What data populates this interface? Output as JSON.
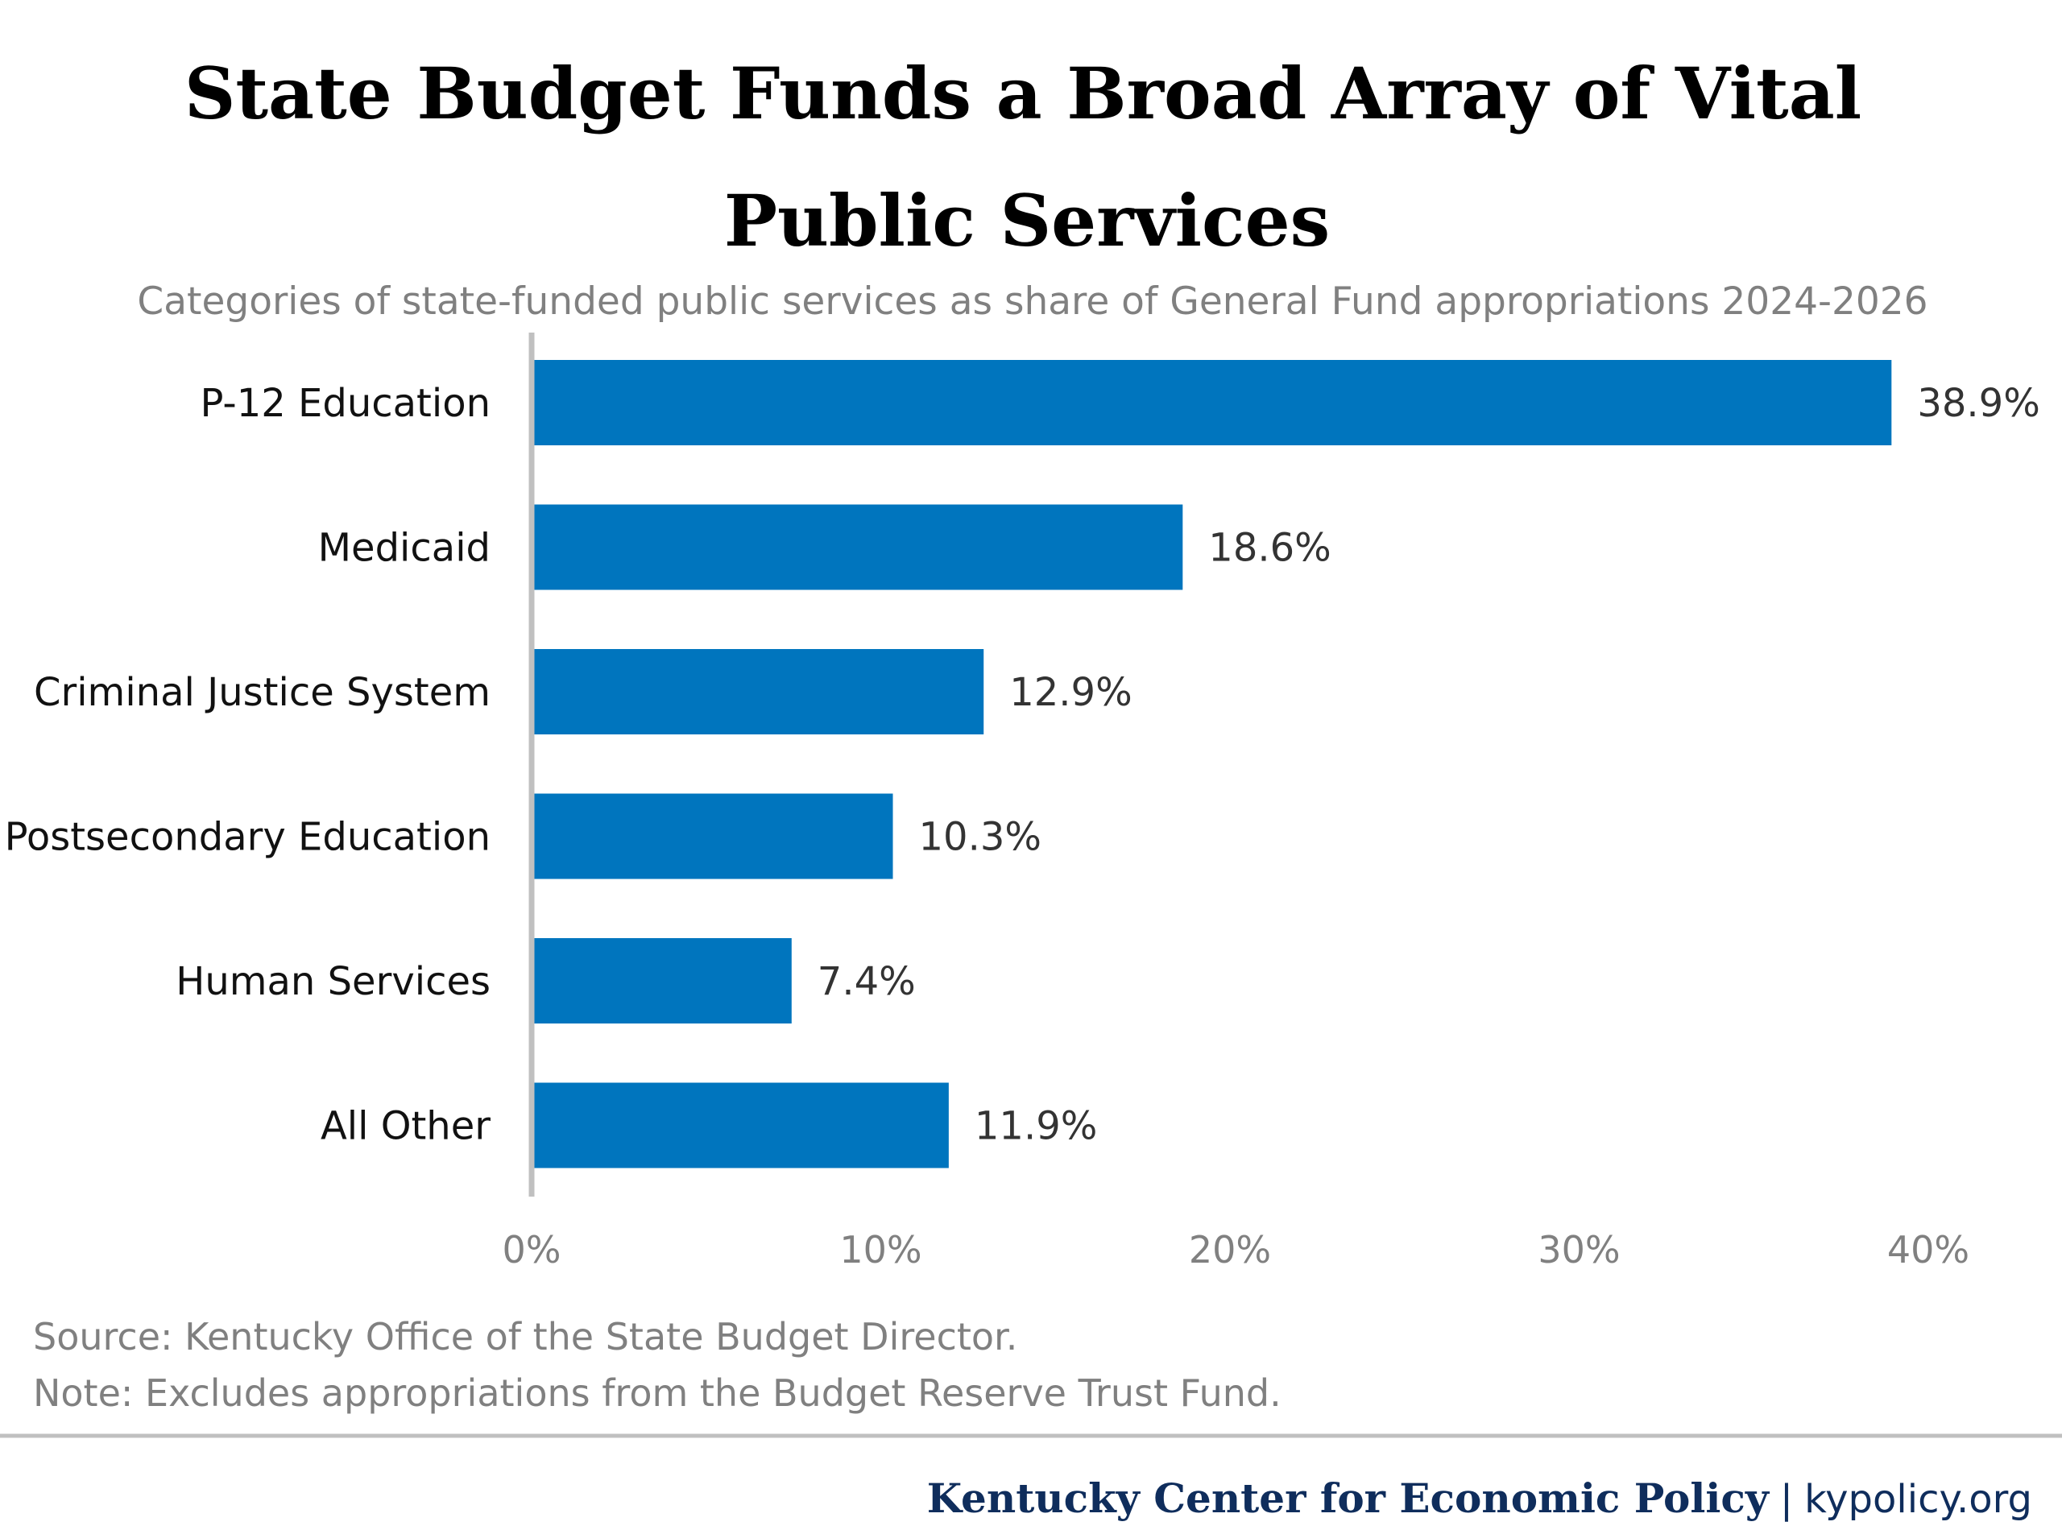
{
  "chart_data": {
    "type": "bar",
    "orientation": "horizontal",
    "title_lines": [
      "State Budget Funds a Broad Array of Vital",
      "Public Services"
    ],
    "subtitle": "Categories of state-funded public services as share of General Fund appropriations 2024-2026",
    "categories": [
      "P-12 Education",
      "Medicaid",
      "Criminal Justice System",
      "Postsecondary Education",
      "Human Services",
      "All Other"
    ],
    "values": [
      38.9,
      18.6,
      12.9,
      10.3,
      7.4,
      11.9
    ],
    "value_labels": [
      "38.9%",
      "18.6%",
      "12.9%",
      "10.3%",
      "7.4%",
      "11.9%"
    ],
    "xlim": [
      0,
      40
    ],
    "xticks": [
      0,
      10,
      20,
      30,
      40
    ],
    "xtick_labels": [
      "0%",
      "10%",
      "20%",
      "30%",
      "40%"
    ],
    "grid": false,
    "bar_color": "#0075BE",
    "source": "Source: Kentucky Office of the State Budget Director.",
    "note": "Note: Excludes appropriations from the Budget Reserve Trust Fund."
  },
  "footer": {
    "org": "Kentucky Center for Economic Policy",
    "separator": "|",
    "site": "kypolicy.org",
    "color": "#0F2D5C"
  }
}
